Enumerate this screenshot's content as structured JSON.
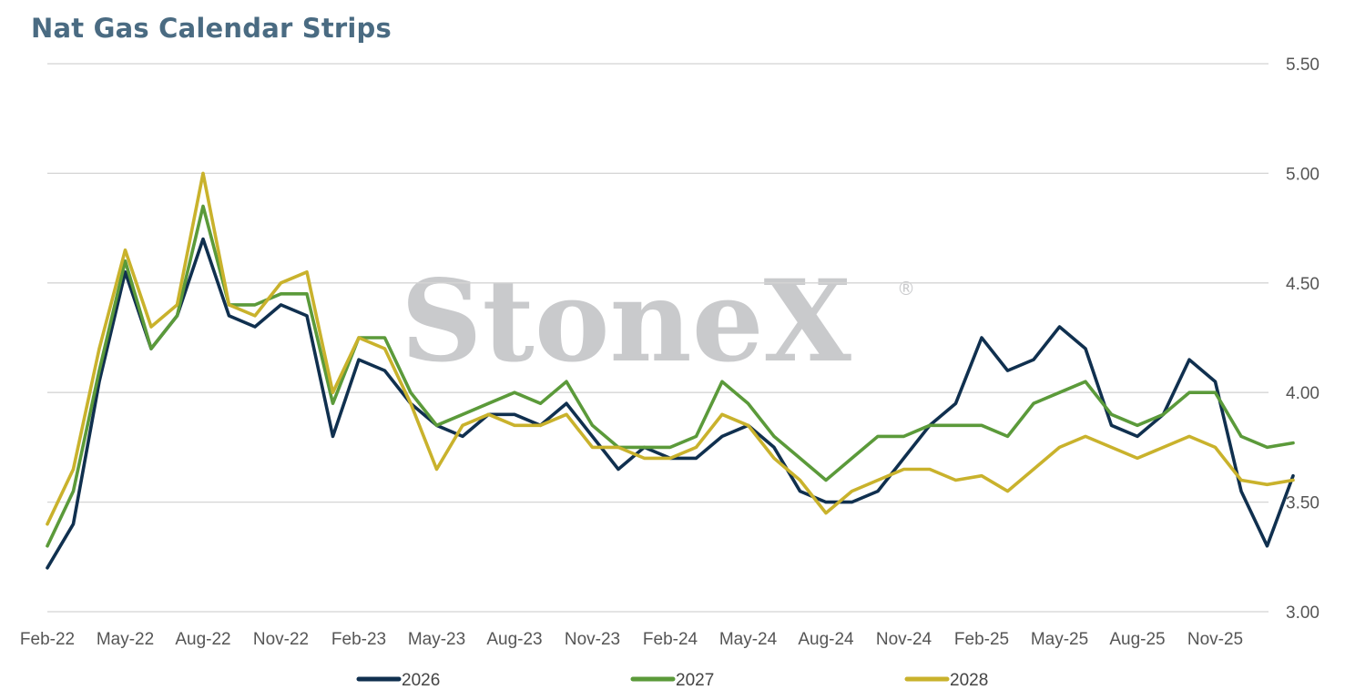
{
  "watermark": {
    "text": "StoneX",
    "mark": "®"
  },
  "colors": {
    "title": "#4a6b82",
    "grid": "#d4d4d4",
    "watermark": "#c9cacc"
  },
  "chart_data": {
    "type": "line",
    "title": "Nat Gas Calendar Strips",
    "ylim": [
      3.0,
      5.5
    ],
    "yticks": [
      "5.50",
      "5.00",
      "4.50",
      "4.00",
      "3.50",
      "3.00"
    ],
    "xticks": [
      "Feb-22",
      "May-22",
      "Aug-22",
      "Nov-22",
      "Feb-23",
      "May-23",
      "Aug-23",
      "Nov-23",
      "Feb-24",
      "May-24",
      "Aug-24",
      "Nov-24",
      "Feb-25",
      "May-25",
      "Aug-25",
      "Nov-25"
    ],
    "grid": true,
    "legend": "bottom",
    "x": [
      "Feb-22",
      "Mar-22",
      "Apr-22",
      "May-22",
      "Jun-22",
      "Jul-22",
      "Aug-22",
      "Sep-22",
      "Oct-22",
      "Nov-22",
      "Dec-22",
      "Jan-23",
      "Feb-23",
      "Mar-23",
      "Apr-23",
      "May-23",
      "Jun-23",
      "Jul-23",
      "Aug-23",
      "Sep-23",
      "Oct-23",
      "Nov-23",
      "Dec-23",
      "Jan-24",
      "Feb-24",
      "Mar-24",
      "Apr-24",
      "May-24",
      "Jun-24",
      "Jul-24",
      "Aug-24",
      "Sep-24",
      "Oct-24",
      "Nov-24",
      "Dec-24",
      "Jan-25",
      "Feb-25",
      "Mar-25",
      "Apr-25",
      "May-25",
      "Jun-25",
      "Jul-25",
      "Aug-25",
      "Sep-25",
      "Oct-25",
      "Nov-25",
      "Dec-25",
      "Jan-26",
      "Feb-26"
    ],
    "series": [
      {
        "name": "2026",
        "color": "#10304f",
        "values": [
          3.2,
          3.4,
          4.05,
          4.55,
          4.2,
          4.35,
          4.7,
          4.35,
          4.3,
          4.4,
          4.35,
          3.8,
          4.15,
          4.1,
          3.95,
          3.85,
          3.8,
          3.9,
          3.9,
          3.85,
          3.95,
          3.8,
          3.65,
          3.75,
          3.7,
          3.7,
          3.8,
          3.85,
          3.75,
          3.55,
          3.5,
          3.5,
          3.55,
          3.7,
          3.85,
          3.95,
          4.25,
          4.1,
          4.15,
          4.3,
          4.2,
          3.85,
          3.8,
          3.9,
          4.15,
          4.05,
          3.55,
          3.3,
          3.62
        ]
      },
      {
        "name": "2027",
        "color": "#5b9a3a",
        "values": [
          3.3,
          3.55,
          4.1,
          4.6,
          4.2,
          4.35,
          4.85,
          4.4,
          4.4,
          4.45,
          4.45,
          3.95,
          4.25,
          4.25,
          4.0,
          3.85,
          3.9,
          3.95,
          4.0,
          3.95,
          4.05,
          3.85,
          3.75,
          3.75,
          3.75,
          3.8,
          4.05,
          3.95,
          3.8,
          3.7,
          3.6,
          3.7,
          3.8,
          3.8,
          3.85,
          3.85,
          3.85,
          3.8,
          3.95,
          4.0,
          4.05,
          3.9,
          3.85,
          3.9,
          4.0,
          4.0,
          3.8,
          3.75,
          3.77
        ]
      },
      {
        "name": "2028",
        "color": "#c9b22c",
        "values": [
          3.4,
          3.65,
          4.2,
          4.65,
          4.3,
          4.4,
          5.0,
          4.4,
          4.35,
          4.5,
          4.55,
          4.0,
          4.25,
          4.2,
          3.95,
          3.65,
          3.85,
          3.9,
          3.85,
          3.85,
          3.9,
          3.75,
          3.75,
          3.7,
          3.7,
          3.75,
          3.9,
          3.85,
          3.7,
          3.6,
          3.45,
          3.55,
          3.6,
          3.65,
          3.65,
          3.6,
          3.62,
          3.55,
          3.65,
          3.75,
          3.8,
          3.75,
          3.7,
          3.75,
          3.8,
          3.75,
          3.6,
          3.58,
          3.6
        ]
      }
    ]
  }
}
